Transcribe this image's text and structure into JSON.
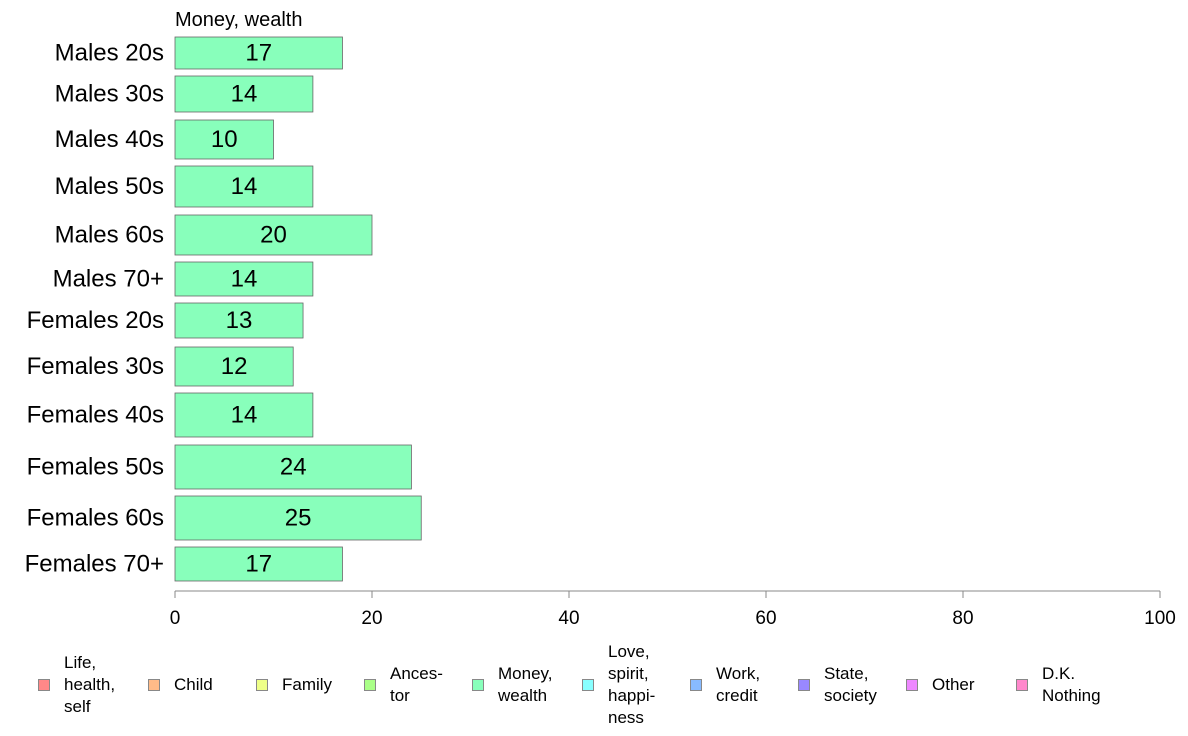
{
  "chart_data": {
    "type": "bar",
    "orientation": "horizontal",
    "title": "Money, wealth",
    "categories": [
      "Males 20s",
      "Males 30s",
      "Males 40s",
      "Males 50s",
      "Males 60s",
      "Males 70+",
      "Females 20s",
      "Females 30s",
      "Females 40s",
      "Females 50s",
      "Females 60s",
      "Females 70+"
    ],
    "values": [
      17,
      14,
      10,
      14,
      20,
      14,
      13,
      12,
      14,
      24,
      25,
      17
    ],
    "xlim": [
      0,
      100
    ],
    "xticks": [
      0,
      20,
      40,
      60,
      80,
      100
    ],
    "bar_color": "#88ffbb",
    "grid": false,
    "legend_position": "bottom",
    "legend": [
      {
        "label": "Life,\nhealth,\nself",
        "color": "#ff8888"
      },
      {
        "label": "Child",
        "color": "#ffbb88"
      },
      {
        "label": "Family",
        "color": "#eeff88"
      },
      {
        "label": "Ances-\ntor",
        "color": "#aaff88"
      },
      {
        "label": "Money,\nwealth",
        "color": "#88ffbb"
      },
      {
        "label": "Love,\nspirit,\nhappi-\nness",
        "color": "#88ffff"
      },
      {
        "label": "Work,\ncredit",
        "color": "#88bbff"
      },
      {
        "label": "State,\nsociety",
        "color": "#9988ff"
      },
      {
        "label": "Other",
        "color": "#ee88ff"
      },
      {
        "label": "D.K.\nNothing",
        "color": "#ff88cc"
      }
    ]
  }
}
